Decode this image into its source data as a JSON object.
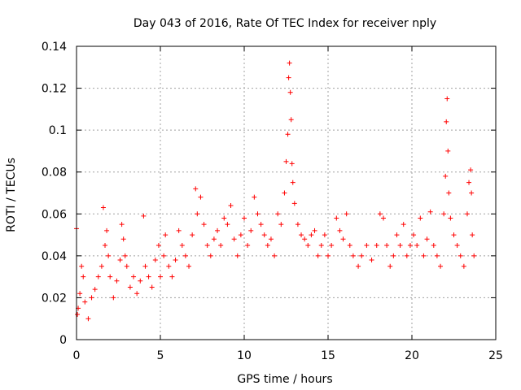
{
  "chart_data": {
    "type": "scatter",
    "title": "Day 043 of 2016, Rate Of TEC Index for receiver nply",
    "xlabel": "GPS time / hours",
    "ylabel": "ROTI / TECUs",
    "xlim": [
      0,
      25
    ],
    "ylim": [
      0,
      0.14
    ],
    "x_ticks": [
      0,
      5,
      10,
      15,
      20,
      25
    ],
    "x_tick_labels": [
      "0",
      "5",
      "10",
      "15",
      "20",
      "25"
    ],
    "y_ticks": [
      0,
      0.02,
      0.04,
      0.06,
      0.08,
      0.1,
      0.12,
      0.14
    ],
    "y_tick_labels": [
      "0",
      "0.02",
      "0.04",
      "0.06",
      "0.08",
      "0.1",
      "0.12",
      "0.14"
    ],
    "grid": true,
    "marker": "plus",
    "color": "#ff0000",
    "series": [
      {
        "name": "ROTI",
        "points": [
          [
            0.0,
            0.053
          ],
          [
            0.05,
            0.012
          ],
          [
            0.1,
            0.015
          ],
          [
            0.2,
            0.022
          ],
          [
            0.3,
            0.035
          ],
          [
            0.4,
            0.03
          ],
          [
            0.5,
            0.018
          ],
          [
            0.7,
            0.01
          ],
          [
            0.9,
            0.02
          ],
          [
            1.1,
            0.024
          ],
          [
            1.3,
            0.03
          ],
          [
            1.5,
            0.035
          ],
          [
            1.6,
            0.063
          ],
          [
            1.7,
            0.045
          ],
          [
            1.8,
            0.052
          ],
          [
            1.9,
            0.04
          ],
          [
            2.0,
            0.03
          ],
          [
            2.2,
            0.02
          ],
          [
            2.4,
            0.028
          ],
          [
            2.6,
            0.038
          ],
          [
            2.7,
            0.055
          ],
          [
            2.8,
            0.048
          ],
          [
            2.9,
            0.04
          ],
          [
            3.0,
            0.035
          ],
          [
            3.2,
            0.025
          ],
          [
            3.4,
            0.03
          ],
          [
            3.6,
            0.022
          ],
          [
            3.8,
            0.028
          ],
          [
            4.0,
            0.059
          ],
          [
            4.1,
            0.035
          ],
          [
            4.3,
            0.03
          ],
          [
            4.5,
            0.025
          ],
          [
            4.7,
            0.038
          ],
          [
            4.9,
            0.045
          ],
          [
            5.0,
            0.03
          ],
          [
            5.2,
            0.04
          ],
          [
            5.3,
            0.05
          ],
          [
            5.5,
            0.035
          ],
          [
            5.7,
            0.03
          ],
          [
            5.9,
            0.038
          ],
          [
            6.1,
            0.052
          ],
          [
            6.3,
            0.045
          ],
          [
            6.5,
            0.04
          ],
          [
            6.7,
            0.035
          ],
          [
            6.9,
            0.05
          ],
          [
            7.1,
            0.072
          ],
          [
            7.2,
            0.06
          ],
          [
            7.4,
            0.068
          ],
          [
            7.6,
            0.055
          ],
          [
            7.8,
            0.045
          ],
          [
            8.0,
            0.04
          ],
          [
            8.2,
            0.048
          ],
          [
            8.4,
            0.052
          ],
          [
            8.6,
            0.045
          ],
          [
            8.8,
            0.058
          ],
          [
            9.0,
            0.055
          ],
          [
            9.2,
            0.064
          ],
          [
            9.4,
            0.048
          ],
          [
            9.6,
            0.04
          ],
          [
            9.8,
            0.05
          ],
          [
            10.0,
            0.058
          ],
          [
            10.2,
            0.045
          ],
          [
            10.4,
            0.052
          ],
          [
            10.6,
            0.068
          ],
          [
            10.8,
            0.06
          ],
          [
            11.0,
            0.055
          ],
          [
            11.2,
            0.05
          ],
          [
            11.4,
            0.045
          ],
          [
            11.6,
            0.048
          ],
          [
            11.8,
            0.04
          ],
          [
            12.0,
            0.06
          ],
          [
            12.2,
            0.055
          ],
          [
            12.4,
            0.07
          ],
          [
            12.5,
            0.085
          ],
          [
            12.6,
            0.098
          ],
          [
            12.65,
            0.125
          ],
          [
            12.7,
            0.132
          ],
          [
            12.75,
            0.118
          ],
          [
            12.8,
            0.105
          ],
          [
            12.85,
            0.084
          ],
          [
            12.9,
            0.075
          ],
          [
            13.0,
            0.065
          ],
          [
            13.2,
            0.055
          ],
          [
            13.4,
            0.05
          ],
          [
            13.6,
            0.048
          ],
          [
            13.8,
            0.045
          ],
          [
            14.0,
            0.05
          ],
          [
            14.2,
            0.052
          ],
          [
            14.4,
            0.04
          ],
          [
            14.6,
            0.045
          ],
          [
            14.8,
            0.05
          ],
          [
            15.0,
            0.04
          ],
          [
            15.2,
            0.045
          ],
          [
            15.5,
            0.058
          ],
          [
            15.7,
            0.052
          ],
          [
            15.9,
            0.048
          ],
          [
            16.1,
            0.06
          ],
          [
            16.3,
            0.045
          ],
          [
            16.5,
            0.04
          ],
          [
            16.8,
            0.035
          ],
          [
            17.0,
            0.04
          ],
          [
            17.3,
            0.045
          ],
          [
            17.6,
            0.038
          ],
          [
            17.9,
            0.045
          ],
          [
            18.1,
            0.06
          ],
          [
            18.3,
            0.058
          ],
          [
            18.5,
            0.045
          ],
          [
            18.7,
            0.035
          ],
          [
            18.9,
            0.04
          ],
          [
            19.1,
            0.05
          ],
          [
            19.3,
            0.045
          ],
          [
            19.5,
            0.055
          ],
          [
            19.7,
            0.04
          ],
          [
            19.9,
            0.045
          ],
          [
            20.1,
            0.05
          ],
          [
            20.3,
            0.045
          ],
          [
            20.5,
            0.058
          ],
          [
            20.7,
            0.04
          ],
          [
            20.9,
            0.048
          ],
          [
            21.1,
            0.061
          ],
          [
            21.3,
            0.045
          ],
          [
            21.5,
            0.04
          ],
          [
            21.7,
            0.035
          ],
          [
            21.9,
            0.06
          ],
          [
            22.0,
            0.078
          ],
          [
            22.05,
            0.104
          ],
          [
            22.1,
            0.115
          ],
          [
            22.15,
            0.09
          ],
          [
            22.2,
            0.07
          ],
          [
            22.3,
            0.058
          ],
          [
            22.5,
            0.05
          ],
          [
            22.7,
            0.045
          ],
          [
            22.9,
            0.04
          ],
          [
            23.1,
            0.035
          ],
          [
            23.3,
            0.06
          ],
          [
            23.4,
            0.075
          ],
          [
            23.5,
            0.081
          ],
          [
            23.55,
            0.07
          ],
          [
            23.6,
            0.05
          ],
          [
            23.7,
            0.04
          ]
        ]
      }
    ]
  }
}
